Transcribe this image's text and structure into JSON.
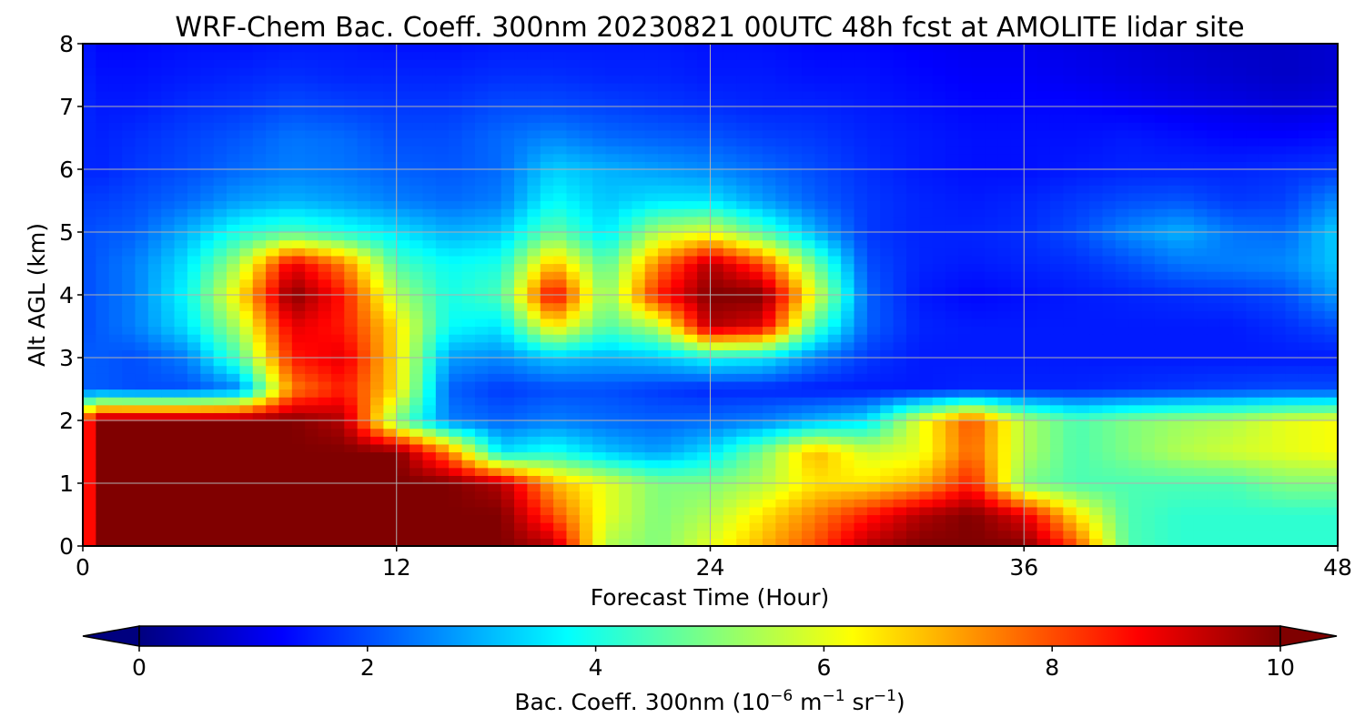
{
  "chart_data": {
    "type": "heatmap",
    "title": "WRF-Chem Bac. Coeff. 300nm  20230821 00UTC 48h fcst at AMOLITE lidar site",
    "xlabel": "Forecast Time (Hour)",
    "ylabel": "Alt AGL (km)",
    "xlim": [
      0,
      48
    ],
    "ylim": [
      0,
      8
    ],
    "x_ticks": [
      "0",
      "12",
      "24",
      "36",
      "48"
    ],
    "y_ticks": [
      "0",
      "1",
      "2",
      "3",
      "4",
      "5",
      "6",
      "7",
      "8"
    ],
    "grid": true,
    "colorbar": {
      "label_prefix": "Bac. Coeff. 300nm  (10",
      "label_exp1": "−6",
      "label_mid1": " m",
      "label_exp2": "−1",
      "label_mid2": " sr",
      "label_exp3": "−1",
      "label_suffix": ")",
      "range": [
        0,
        10
      ],
      "ticks": [
        "0",
        "2",
        "4",
        "6",
        "8",
        "10"
      ],
      "colormap": "jet",
      "extend": "both",
      "placement": "bottom"
    },
    "x": [
      0,
      2,
      4,
      6,
      8,
      10,
      12,
      14,
      16,
      18,
      20,
      22,
      24,
      26,
      28,
      30,
      32,
      34,
      36,
      38,
      40,
      42,
      44,
      46,
      48
    ],
    "y": [
      0,
      0.5,
      1,
      1.5,
      2,
      2.5,
      3,
      3.5,
      4,
      4.5,
      5,
      5.5,
      6,
      6.5,
      7,
      7.5,
      8
    ],
    "z_units": "1e-6 m^-1 sr^-1",
    "z": [
      [
        10,
        10,
        10,
        10,
        10,
        10,
        10,
        10,
        10,
        9.5,
        5.5,
        5,
        6,
        7,
        8,
        9.5,
        10,
        10,
        10,
        8,
        4.5,
        4.2,
        4.2,
        4.2,
        4.2
      ],
      [
        10,
        10,
        10,
        10,
        10,
        10,
        10,
        10,
        10,
        8,
        6,
        5,
        5.5,
        6.5,
        7.5,
        8.5,
        9.5,
        10,
        9,
        6.5,
        4.5,
        4.2,
        4.2,
        4.2,
        4.2
      ],
      [
        10,
        10,
        10,
        10,
        10,
        10,
        10,
        10,
        9.5,
        7,
        6,
        5,
        5,
        5.5,
        6.5,
        6.5,
        7,
        8.5,
        5,
        4.5,
        4.5,
        4.5,
        4.5,
        5,
        5
      ],
      [
        10,
        10,
        10,
        10,
        10,
        10,
        10,
        7.5,
        3.5,
        4,
        3.2,
        2.8,
        3.5,
        5,
        7,
        5.8,
        6,
        7.8,
        5.5,
        4.5,
        5,
        5.5,
        5.8,
        6,
        6.2
      ],
      [
        10,
        10,
        10,
        10,
        10,
        9.5,
        5,
        2.5,
        2.2,
        2.5,
        2.3,
        2.2,
        2.3,
        2.5,
        3,
        3.5,
        6,
        8,
        5.5,
        4.5,
        5,
        5.3,
        5.5,
        6,
        6.2
      ],
      [
        2.2,
        2,
        2,
        2.5,
        7.5,
        8.5,
        6.5,
        2.2,
        1.8,
        2,
        2,
        1.8,
        1.6,
        1.6,
        1.5,
        1.5,
        1.5,
        1.6,
        1.6,
        1.6,
        1.7,
        1.8,
        1.9,
        2,
        2
      ],
      [
        2.2,
        2,
        2.5,
        4.5,
        8.5,
        9,
        6.5,
        2.8,
        2.6,
        3.2,
        3,
        3.2,
        3.8,
        3.6,
        2.5,
        1.8,
        1.5,
        1.5,
        1.5,
        1.5,
        1.5,
        1.5,
        1.5,
        1.5,
        1.5
      ],
      [
        2,
        2.5,
        3.5,
        5.5,
        9,
        8.5,
        6.5,
        3.8,
        3.5,
        6.5,
        4.5,
        5.5,
        9.5,
        9,
        4.5,
        2.2,
        1.6,
        1.5,
        1.5,
        1.5,
        1.5,
        1.5,
        1.5,
        1.7,
        2
      ],
      [
        2,
        2.5,
        3.8,
        6.5,
        10,
        8.5,
        5.5,
        4,
        4.5,
        9,
        5,
        8.5,
        10,
        10,
        6,
        2.2,
        1.5,
        1.3,
        1.4,
        1.5,
        1.6,
        1.7,
        1.8,
        2,
        2.8
      ],
      [
        2,
        2.5,
        3.5,
        5.5,
        9,
        7.5,
        4.5,
        3.8,
        4,
        7,
        4.5,
        7.5,
        9.5,
        8,
        4.8,
        2,
        1.6,
        1.5,
        1.6,
        1.7,
        2,
        2.4,
        2.5,
        2.6,
        3.2
      ],
      [
        2,
        2.2,
        3,
        4,
        4.5,
        4,
        3.5,
        3,
        3.2,
        4.8,
        3.5,
        5.5,
        6,
        4.5,
        3,
        1.8,
        1.6,
        1.6,
        1.7,
        2,
        2.6,
        3,
        2.4,
        2.3,
        3.3
      ],
      [
        1.8,
        2,
        2.3,
        2.8,
        3,
        2.8,
        2.5,
        2.3,
        2.5,
        3.8,
        3.2,
        3.5,
        3.5,
        2.8,
        2.2,
        1.8,
        1.6,
        1.5,
        1.6,
        1.8,
        2,
        2.1,
        1.8,
        1.9,
        2.6
      ],
      [
        1.5,
        1.8,
        2,
        2.3,
        2.5,
        2.4,
        2.2,
        2.1,
        2.3,
        3.3,
        3,
        2.8,
        2.6,
        2.3,
        2,
        1.7,
        1.5,
        1.4,
        1.4,
        1.5,
        1.6,
        1.6,
        1.6,
        1.7,
        1.8
      ],
      [
        1.5,
        1.7,
        1.9,
        2.1,
        2.4,
        2.3,
        2,
        2,
        2.3,
        2.6,
        2.3,
        2.2,
        2.1,
        1.9,
        1.8,
        1.6,
        1.5,
        1.4,
        1.4,
        1.4,
        1.5,
        1.4,
        1.3,
        1.3,
        1.4
      ],
      [
        1.5,
        1.5,
        1.7,
        1.8,
        2,
        1.9,
        1.8,
        1.8,
        2,
        2,
        1.9,
        1.8,
        1.7,
        1.6,
        1.6,
        1.5,
        1.4,
        1.3,
        1.3,
        1.3,
        1.2,
        1.1,
        1,
        0.9,
        1
      ],
      [
        1.4,
        1.4,
        1.5,
        1.6,
        1.7,
        1.6,
        1.6,
        1.6,
        1.7,
        1.7,
        1.6,
        1.6,
        1.5,
        1.5,
        1.4,
        1.4,
        1.3,
        1.2,
        1.2,
        1.1,
        1,
        0.9,
        0.8,
        0.7,
        0.8
      ],
      [
        1.3,
        1.3,
        1.4,
        1.4,
        1.5,
        1.5,
        1.4,
        1.4,
        1.5,
        1.5,
        1.5,
        1.5,
        1.4,
        1.4,
        1.3,
        1.3,
        1.2,
        1.1,
        1.1,
        1,
        0.9,
        0.8,
        0.7,
        0.7,
        0.8
      ]
    ]
  }
}
